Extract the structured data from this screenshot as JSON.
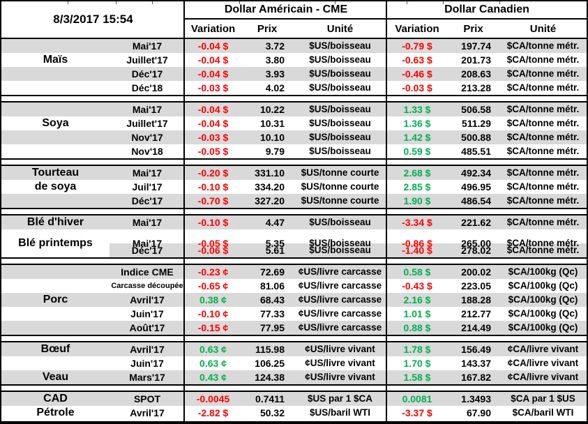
{
  "meta": {
    "timestamp": "8/3/2017 15:54"
  },
  "header": {
    "us_group": "Dollar Américain - CME",
    "ca_group": "Dollar Canadien",
    "variation": "Variation",
    "prix": "Prix",
    "unite": "Unité"
  },
  "colors": {
    "negative": "#FF0000",
    "positive": "#00B050",
    "row_shade": "#D9D9D9"
  },
  "sections": [
    {
      "rows": [
        {
          "commodity": "",
          "contract": "Mai'17",
          "us_var": "-0.04 $",
          "us_prix": "3.72",
          "us_unit": "$US/boisseau",
          "ca_var": "-0.79 $",
          "ca_prix": "197.74",
          "ca_unit": "$CA/tonne métr."
        },
        {
          "commodity": "Maïs",
          "contract": "Juillet'17",
          "us_var": "-0.04 $",
          "us_prix": "3.80",
          "us_unit": "$US/boisseau",
          "ca_var": "-0.63 $",
          "ca_prix": "201.73",
          "ca_unit": "$CA/tonne métr."
        },
        {
          "commodity": "",
          "contract": "Déc'17",
          "us_var": "-0.04 $",
          "us_prix": "3.93",
          "us_unit": "$US/boisseau",
          "ca_var": "-0.46 $",
          "ca_prix": "208.63",
          "ca_unit": "$CA/tonne métr."
        },
        {
          "commodity": "",
          "contract": "Déc'18",
          "us_var": "-0.03 $",
          "us_prix": "4.02",
          "us_unit": "$US/boisseau",
          "ca_var": "-0.03 $",
          "ca_prix": "213.28",
          "ca_unit": "$CA/tonne métr."
        }
      ]
    },
    {
      "rows": [
        {
          "commodity": "",
          "contract": "Mai'17",
          "us_var": "-0.04 $",
          "us_prix": "10.22",
          "us_unit": "$US/boisseau",
          "ca_var": "1.33 $",
          "ca_prix": "506.58",
          "ca_unit": "$CA/tonne métr."
        },
        {
          "commodity": "Soya",
          "contract": "Juillet'17",
          "us_var": "-0.04 $",
          "us_prix": "10.31",
          "us_unit": "$US/boisseau",
          "ca_var": "1.36 $",
          "ca_prix": "511.29",
          "ca_unit": "$CA/tonne métr."
        },
        {
          "commodity": "",
          "contract": "Nov'17",
          "us_var": "-0.03 $",
          "us_prix": "10.10",
          "us_unit": "$US/boisseau",
          "ca_var": "1.42 $",
          "ca_prix": "500.88",
          "ca_unit": "$CA/tonne métr."
        },
        {
          "commodity": "",
          "contract": "Nov'18",
          "us_var": "-0.05 $",
          "us_prix": "9.79",
          "us_unit": "$US/boisseau",
          "ca_var": "0.59 $",
          "ca_prix": "485.51",
          "ca_unit": "$CA/tonne métr."
        }
      ]
    },
    {
      "rows": [
        {
          "commodity": "Tourteau",
          "contract": "Mai'17",
          "us_var": "-0.20 $",
          "us_prix": "331.10",
          "us_unit": "$US/tonne courte",
          "ca_var": "2.68 $",
          "ca_prix": "492.34",
          "ca_unit": "$CA/tonne métr."
        },
        {
          "commodity": "de soya",
          "contract": "Juil'17",
          "us_var": "-0.10 $",
          "us_prix": "334.20",
          "us_unit": "$US/tonne courte",
          "ca_var": "2.85 $",
          "ca_prix": "496.95",
          "ca_unit": "$CA/tonne métr."
        },
        {
          "commodity": "",
          "contract": "Déc'17",
          "us_var": "-0.70 $",
          "us_prix": "327.20",
          "us_unit": "$US/tonne courte",
          "ca_var": "1.90 $",
          "ca_prix": "486.54",
          "ca_unit": "$CA/tonne métr."
        }
      ]
    },
    {
      "rows": [
        {
          "commodity": "Blé d'hiver",
          "contract": "Mai'17",
          "us_var": "-0.10 $",
          "us_prix": "4.47",
          "us_unit": "$US/boisseau",
          "ca_var": "-3.34 $",
          "ca_prix": "221.62",
          "ca_unit": "$CA/tonne métr."
        },
        {
          "commodity": "Blé printemps",
          "span2": true,
          "contract": "Mai'17",
          "us_var": "-0.05 $",
          "us_prix": "5.35",
          "us_unit": "$US/boisseau",
          "ca_var": "-0.86 $",
          "ca_prix": "265.00",
          "ca_unit": "$CA/tonne métr."
        },
        {
          "commodity": "",
          "com_white": true,
          "contract": "Déc'17",
          "us_var": "-0.06 $",
          "us_prix": "5.61",
          "us_unit": "$US/boisseau",
          "ca_var": "-1.40 $",
          "ca_prix": "278.02",
          "ca_unit": "$CA/tonne métr."
        }
      ]
    },
    {
      "rows": [
        {
          "commodity": "",
          "contract": "Indice CME",
          "us_var": "-0.23 ¢",
          "us_prix": "72.69",
          "us_unit": "¢US/livre carcasse",
          "ca_var": "0.58 $",
          "ca_prix": "200.02",
          "ca_unit": "$CA/100kg (Qc)"
        },
        {
          "commodity": "",
          "contract": "Carcasse découpée",
          "small": true,
          "us_var": "-0.65 ¢",
          "us_prix": "81.06",
          "us_unit": "¢US/livre carcasse",
          "ca_var": "-0.43 $",
          "ca_prix": "223.05",
          "ca_unit": "$CA/100kg (Qc)"
        },
        {
          "commodity": "Porc",
          "contract": "Avril'17",
          "us_var": "0.38 ¢",
          "us_prix": "68.43",
          "us_unit": "¢US/livre carcasse",
          "ca_var": "2.16 $",
          "ca_prix": "188.28",
          "ca_unit": "$CA/100kg (Qc)"
        },
        {
          "commodity": "",
          "contract": "Juin'17",
          "us_var": "-0.10 ¢",
          "us_prix": "77.33",
          "us_unit": "¢US/livre carcasse",
          "ca_var": "1.01 $",
          "ca_prix": "212.77",
          "ca_unit": "$CA/100kg (Qc)"
        },
        {
          "commodity": "",
          "contract": "Août'17",
          "us_var": "-0.15 ¢",
          "us_prix": "77.95",
          "us_unit": "¢US/livre carcasse",
          "ca_var": "0.88 $",
          "ca_prix": "214.49",
          "ca_unit": "$CA/100kg (Qc)"
        }
      ]
    },
    {
      "rows": [
        {
          "commodity": "Bœuf",
          "contract": "Avril'17",
          "us_var": "0.63 ¢",
          "us_prix": "115.98",
          "us_unit": "¢US/livre vivant",
          "ca_var": "1.78 $",
          "ca_prix": "156.49",
          "ca_unit": "¢CA/livre vivant"
        },
        {
          "commodity": "",
          "contract": "Juin'17",
          "us_var": "0.63 ¢",
          "us_prix": "106.25",
          "us_unit": "¢US/livre vivant",
          "ca_var": "1.70 $",
          "ca_prix": "143.37",
          "ca_unit": "¢CA/livre vivant"
        },
        {
          "commodity": "Veau",
          "contract": "Mars'17",
          "us_var": "0.43 ¢",
          "us_prix": "124.38",
          "us_unit": "¢US/livre vivant",
          "ca_var": "1.58 $",
          "ca_prix": "167.82",
          "ca_unit": "¢CA/livre vivant"
        }
      ]
    },
    {
      "rows": [
        {
          "commodity": "CAD",
          "contract": "SPOT",
          "us_var": "-0.0045",
          "us_prix": "0.7411",
          "us_unit": "$US par 1 $CA",
          "ca_var": "0.0081",
          "ca_prix": "1.3493",
          "ca_unit": "$CA par 1 $US"
        },
        {
          "commodity": "Pétrole",
          "contract": "Avril'17",
          "us_var": "-2.82 $",
          "us_prix": "50.32",
          "us_unit": "$US/baril WTI",
          "ca_var": "-3.37 $",
          "ca_prix": "67.90",
          "ca_unit": "$CA/baril WTI"
        }
      ]
    }
  ]
}
